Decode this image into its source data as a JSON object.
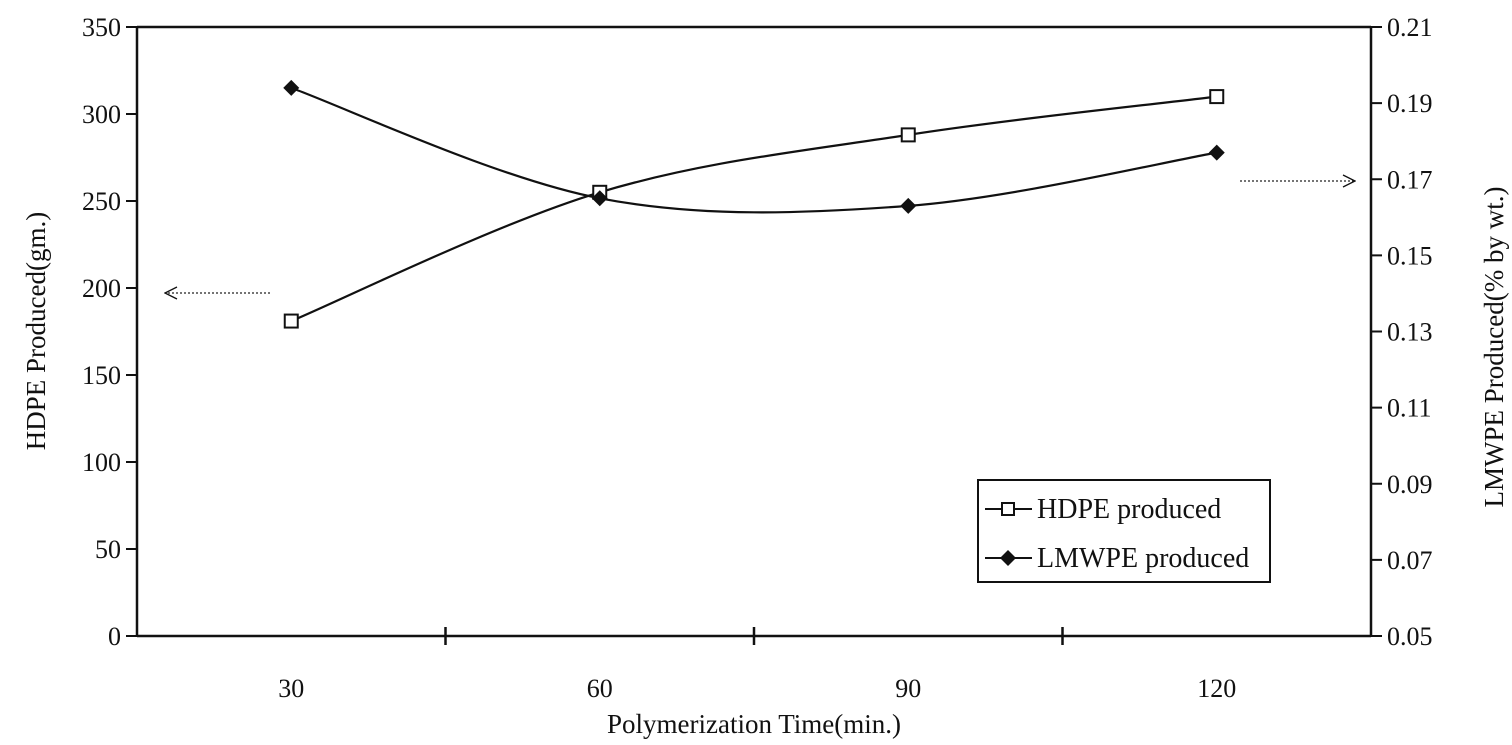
{
  "chart_data": {
    "type": "line",
    "xlabel": "Polymerization Time(min.)",
    "ylabel": "HDPE Produced(gm.)",
    "y2label": "LMWPE Produced(% by wt.)",
    "x_ticks": [
      30,
      60,
      90,
      120
    ],
    "xlim": [
      15,
      135
    ],
    "ylim": [
      0,
      350
    ],
    "y_ticks": [
      0,
      50,
      100,
      150,
      200,
      250,
      300,
      350
    ],
    "y2lim": [
      0.05,
      0.21
    ],
    "y2_ticks": [
      "0.05",
      "0.07",
      "0.09",
      "0.11",
      "0.13",
      "0.15",
      "0.17",
      "0.19",
      "0.21"
    ],
    "grid": false,
    "legend_position": "bottom-right",
    "series": [
      {
        "name": "HDPE produced",
        "axis": "left",
        "marker": "open-square",
        "color": "#111111",
        "x": [
          30,
          60,
          90,
          120
        ],
        "values": [
          181,
          255,
          288,
          310
        ]
      },
      {
        "name": "LMWPE produced",
        "axis": "right",
        "marker": "filled-diamond",
        "color": "#111111",
        "x": [
          30,
          60,
          90,
          120
        ],
        "values": [
          0.194,
          0.165,
          0.163,
          0.177
        ]
      }
    ],
    "annotations": [
      {
        "type": "arrow",
        "points_to": "left-axis",
        "series": "HDPE produced"
      },
      {
        "type": "arrow",
        "points_to": "right-axis",
        "series": "LMWPE produced"
      }
    ]
  }
}
